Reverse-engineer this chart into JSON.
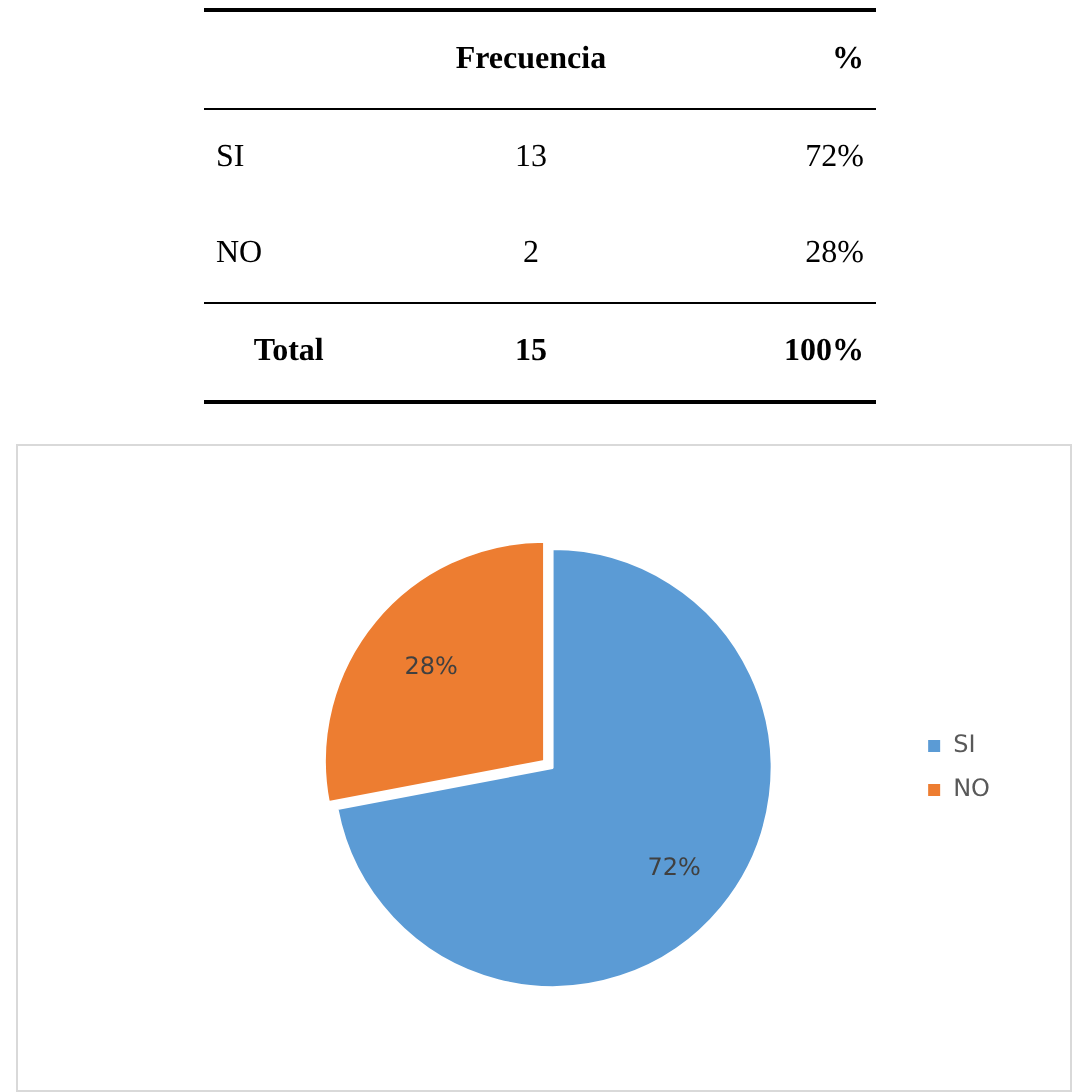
{
  "chart_data": {
    "type": "pie",
    "categories": [
      "SI",
      "NO"
    ],
    "values": [
      72,
      28
    ],
    "colors": [
      "#5b9bd5",
      "#ed7d31"
    ],
    "value_labels": [
      "72%",
      "28%"
    ],
    "legend": "right",
    "annotations": [
      "Frecuencia",
      "%",
      "13",
      "2",
      "Total",
      "15",
      "100%"
    ]
  }
}
